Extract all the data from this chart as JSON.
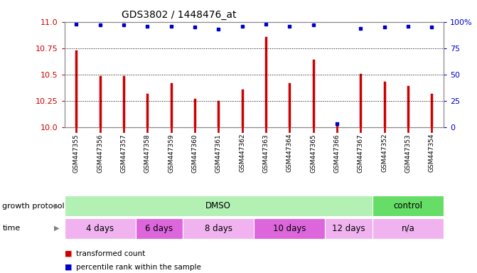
{
  "title": "GDS3802 / 1448476_at",
  "samples": [
    "GSM447355",
    "GSM447356",
    "GSM447357",
    "GSM447358",
    "GSM447359",
    "GSM447360",
    "GSM447361",
    "GSM447362",
    "GSM447363",
    "GSM447364",
    "GSM447365",
    "GSM447366",
    "GSM447367",
    "GSM447352",
    "GSM447353",
    "GSM447354"
  ],
  "bar_values": [
    10.72,
    10.48,
    10.48,
    10.31,
    10.41,
    10.26,
    10.24,
    10.35,
    10.85,
    10.41,
    10.63,
    10.03,
    10.5,
    10.42,
    10.38,
    10.31
  ],
  "percentile_values": [
    98,
    97,
    97,
    96,
    96,
    95,
    93,
    96,
    98,
    96,
    97,
    3,
    94,
    95,
    96,
    95
  ],
  "bar_color": "#cc0000",
  "percentile_color": "#0000cc",
  "ylim_left": [
    10.0,
    11.0
  ],
  "ylim_right": [
    0,
    100
  ],
  "yticks_left": [
    10.0,
    10.25,
    10.5,
    10.75,
    11.0
  ],
  "yticks_right": [
    0,
    25,
    50,
    75,
    100
  ],
  "hlines": [
    10.25,
    10.5,
    10.75
  ],
  "growth_protocol_groups": [
    {
      "label": "DMSO",
      "start": 0,
      "end": 13,
      "color": "#b3f0b3"
    },
    {
      "label": "control",
      "start": 13,
      "end": 16,
      "color": "#66dd66"
    }
  ],
  "time_groups": [
    {
      "label": "4 days",
      "start": 0,
      "end": 3,
      "color": "#f0b3f0"
    },
    {
      "label": "6 days",
      "start": 3,
      "end": 5,
      "color": "#dd66dd"
    },
    {
      "label": "8 days",
      "start": 5,
      "end": 8,
      "color": "#f0b3f0"
    },
    {
      "label": "10 days",
      "start": 8,
      "end": 11,
      "color": "#dd66dd"
    },
    {
      "label": "12 days",
      "start": 11,
      "end": 13,
      "color": "#f0b3f0"
    },
    {
      "label": "n/a",
      "start": 13,
      "end": 16,
      "color": "#f0b3f0"
    }
  ],
  "legend_bar_label": "transformed count",
  "legend_pct_label": "percentile rank within the sample",
  "growth_protocol_label": "growth protocol",
  "time_label": "time",
  "xtick_bg": "#d8d8d8",
  "plot_bg": "#ffffff",
  "spine_color": "#888888"
}
